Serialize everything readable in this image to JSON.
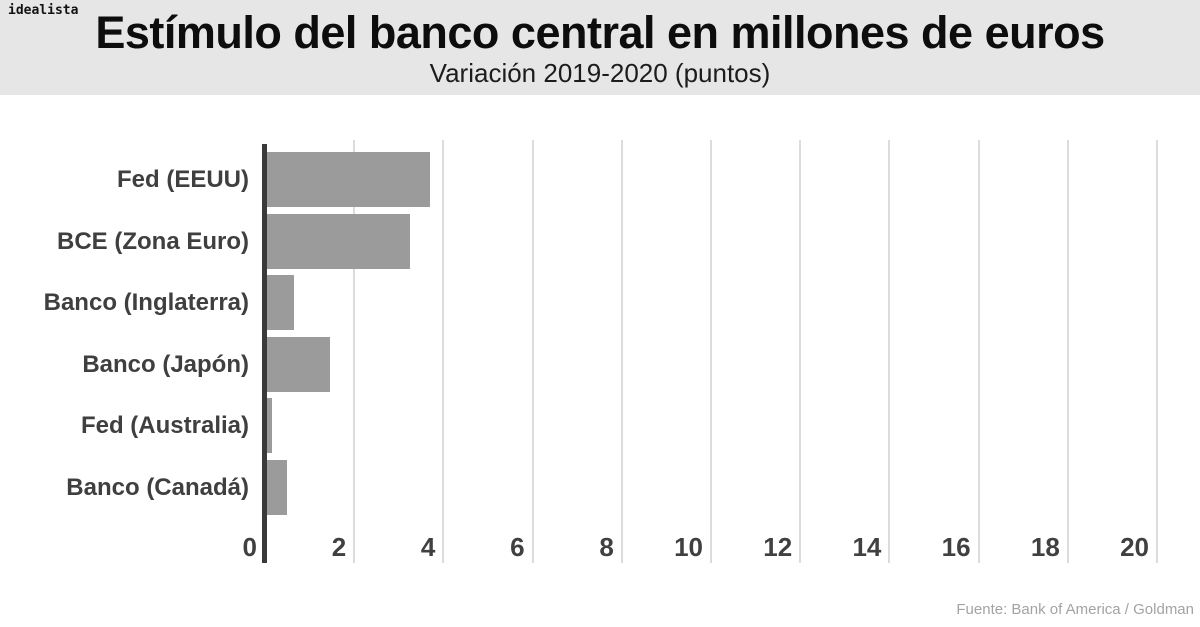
{
  "logo": "idealista",
  "header": {
    "title": "Estímulo del banco central en millones de euros",
    "subtitle": "Variación 2019-2020 (puntos)"
  },
  "footer": {
    "source": "Fuente: Bank of America / Goldman"
  },
  "chart_data": {
    "type": "bar",
    "orientation": "horizontal",
    "title": "Estímulo del banco central en millones de euros",
    "subtitle": "Variación 2019-2020 (puntos)",
    "categories": [
      "Fed (EEUU)",
      "BCE (Zona Euro)",
      "Banco (Inglaterra)",
      "Banco (Japón)",
      "Fed (Australia)",
      "Banco (Canadá)"
    ],
    "values": [
      3.7,
      3.25,
      0.65,
      1.45,
      0.15,
      0.5
    ],
    "xlabel": "",
    "ylabel": "",
    "xlim": [
      0,
      20
    ],
    "xticks": [
      0,
      2,
      4,
      6,
      8,
      10,
      12,
      14,
      16,
      18,
      20
    ],
    "grid": true,
    "legend": "none",
    "colors": {
      "bar": "#9b9b9b",
      "axis_line": "#3a3a3a",
      "gridline": "#dcdcdc",
      "category_label": "#3f3f3f",
      "tick_label": "#404040",
      "header_band": "#e6e6e6",
      "source_text": "#a3a3a3"
    }
  }
}
